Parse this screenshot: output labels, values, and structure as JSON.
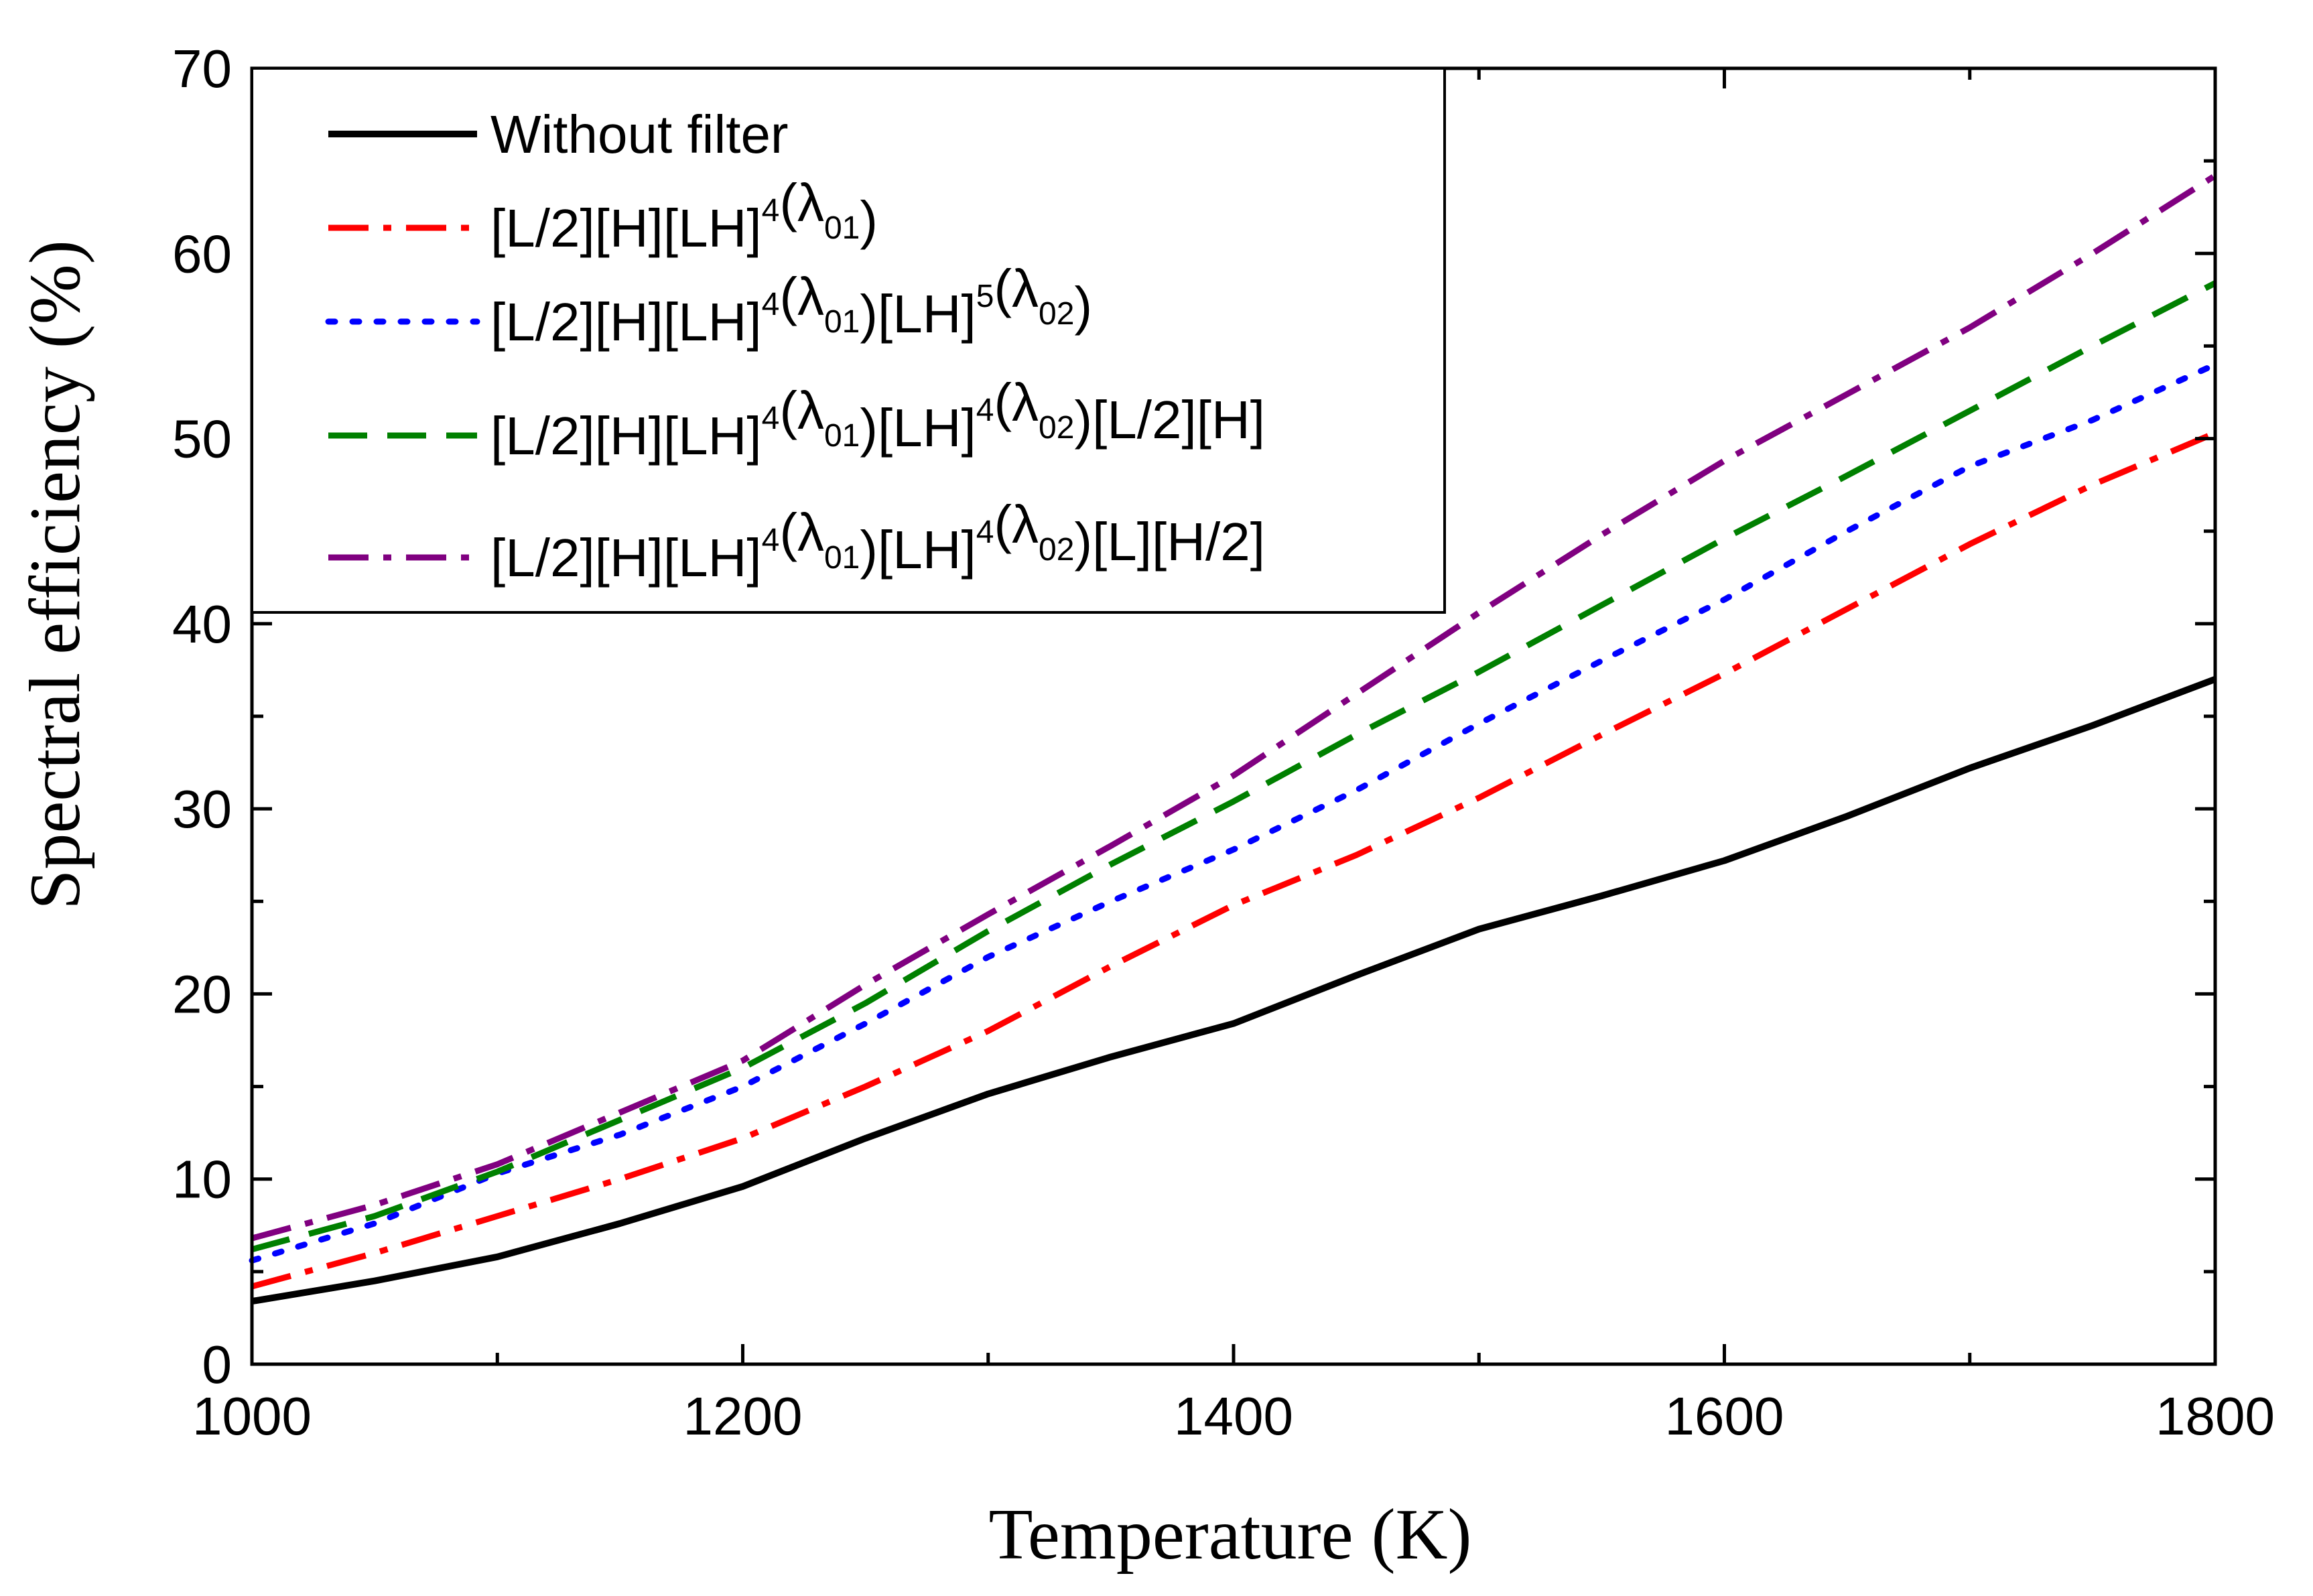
{
  "chart_data": {
    "type": "line",
    "title": "",
    "xlabel": "Temperature (K)",
    "ylabel": "Spectral efficiency (%)",
    "xlim": [
      1000,
      1800
    ],
    "ylim": [
      0,
      70
    ],
    "x_ticks": [
      1000,
      1200,
      1400,
      1600,
      1800
    ],
    "y_ticks": [
      0,
      10,
      20,
      30,
      40,
      50,
      60,
      70
    ],
    "x_tick_labels": [
      "1000",
      "1200",
      "1400",
      "1600",
      "1800"
    ],
    "y_tick_labels": [
      "0",
      "10",
      "20",
      "30",
      "40",
      "50",
      "60",
      "70"
    ],
    "grid": false,
    "legend_position": "top-left",
    "x": [
      1000,
      1050,
      1100,
      1150,
      1200,
      1250,
      1300,
      1350,
      1400,
      1450,
      1500,
      1550,
      1600,
      1650,
      1700,
      1750,
      1800
    ],
    "series": [
      {
        "name": "Without filter",
        "color": "#000000",
        "dash": "solid",
        "values": [
          3.4,
          4.5,
          5.8,
          7.6,
          9.6,
          12.2,
          14.6,
          16.6,
          18.4,
          21.0,
          23.5,
          25.3,
          27.2,
          29.6,
          32.2,
          34.5,
          37.0
        ]
      },
      {
        "name": "[L/2][H][LH]4(λ01)",
        "label_parts": [
          "[L/2][H][LH]",
          "4",
          "(λ",
          "01",
          ")"
        ],
        "color": "#ff0000",
        "dash": "dashdot",
        "values": [
          4.2,
          6.0,
          8.0,
          10.0,
          12.2,
          15.0,
          18.0,
          21.5,
          24.8,
          27.5,
          30.6,
          34.0,
          37.3,
          40.8,
          44.3,
          47.5,
          50.3
        ]
      },
      {
        "name": "[L/2][H][LH]4(λ01)[LH]5(λ02)",
        "label_parts": [
          "[L/2][H][LH]",
          "4",
          "(λ",
          "01",
          ")[LH]",
          "5",
          "(λ",
          "02",
          ")"
        ],
        "color": "#0000ff",
        "dash": "dot",
        "values": [
          5.6,
          7.6,
          10.3,
          12.4,
          15.0,
          18.4,
          22.0,
          25.0,
          27.8,
          31.0,
          34.6,
          38.0,
          41.3,
          45.0,
          48.5,
          51.0,
          54.0
        ]
      },
      {
        "name": "[L/2][H][LH]4(λ01)[LH]4(λ02)[L/2][H]",
        "label_parts": [
          "[L/2][H][LH]",
          "4",
          "(λ",
          "01",
          ")[LH]",
          "4",
          "(λ",
          "02",
          ")[L/2][H]"
        ],
        "color": "#008000",
        "dash": "dash",
        "values": [
          6.2,
          8.0,
          10.4,
          13.2,
          16.0,
          19.5,
          23.4,
          27.0,
          30.4,
          34.0,
          37.4,
          41.0,
          44.6,
          48.0,
          51.5,
          55.0,
          58.4
        ]
      },
      {
        "name": "[L/2][H][LH]4(λ01)[LH]4(λ02)[L][H/2]",
        "label_parts": [
          "[L/2][H][LH]",
          "4",
          "(λ",
          "01",
          ")[LH]",
          "4",
          "(λ",
          "02",
          ")[L][H/2]"
        ],
        "color": "#800080",
        "dash": "dashdot",
        "values": [
          6.8,
          8.6,
          10.8,
          13.6,
          16.4,
          20.5,
          24.3,
          28.0,
          31.8,
          36.2,
          40.6,
          44.8,
          48.8,
          52.4,
          56.0,
          60.0,
          64.2
        ]
      }
    ]
  }
}
